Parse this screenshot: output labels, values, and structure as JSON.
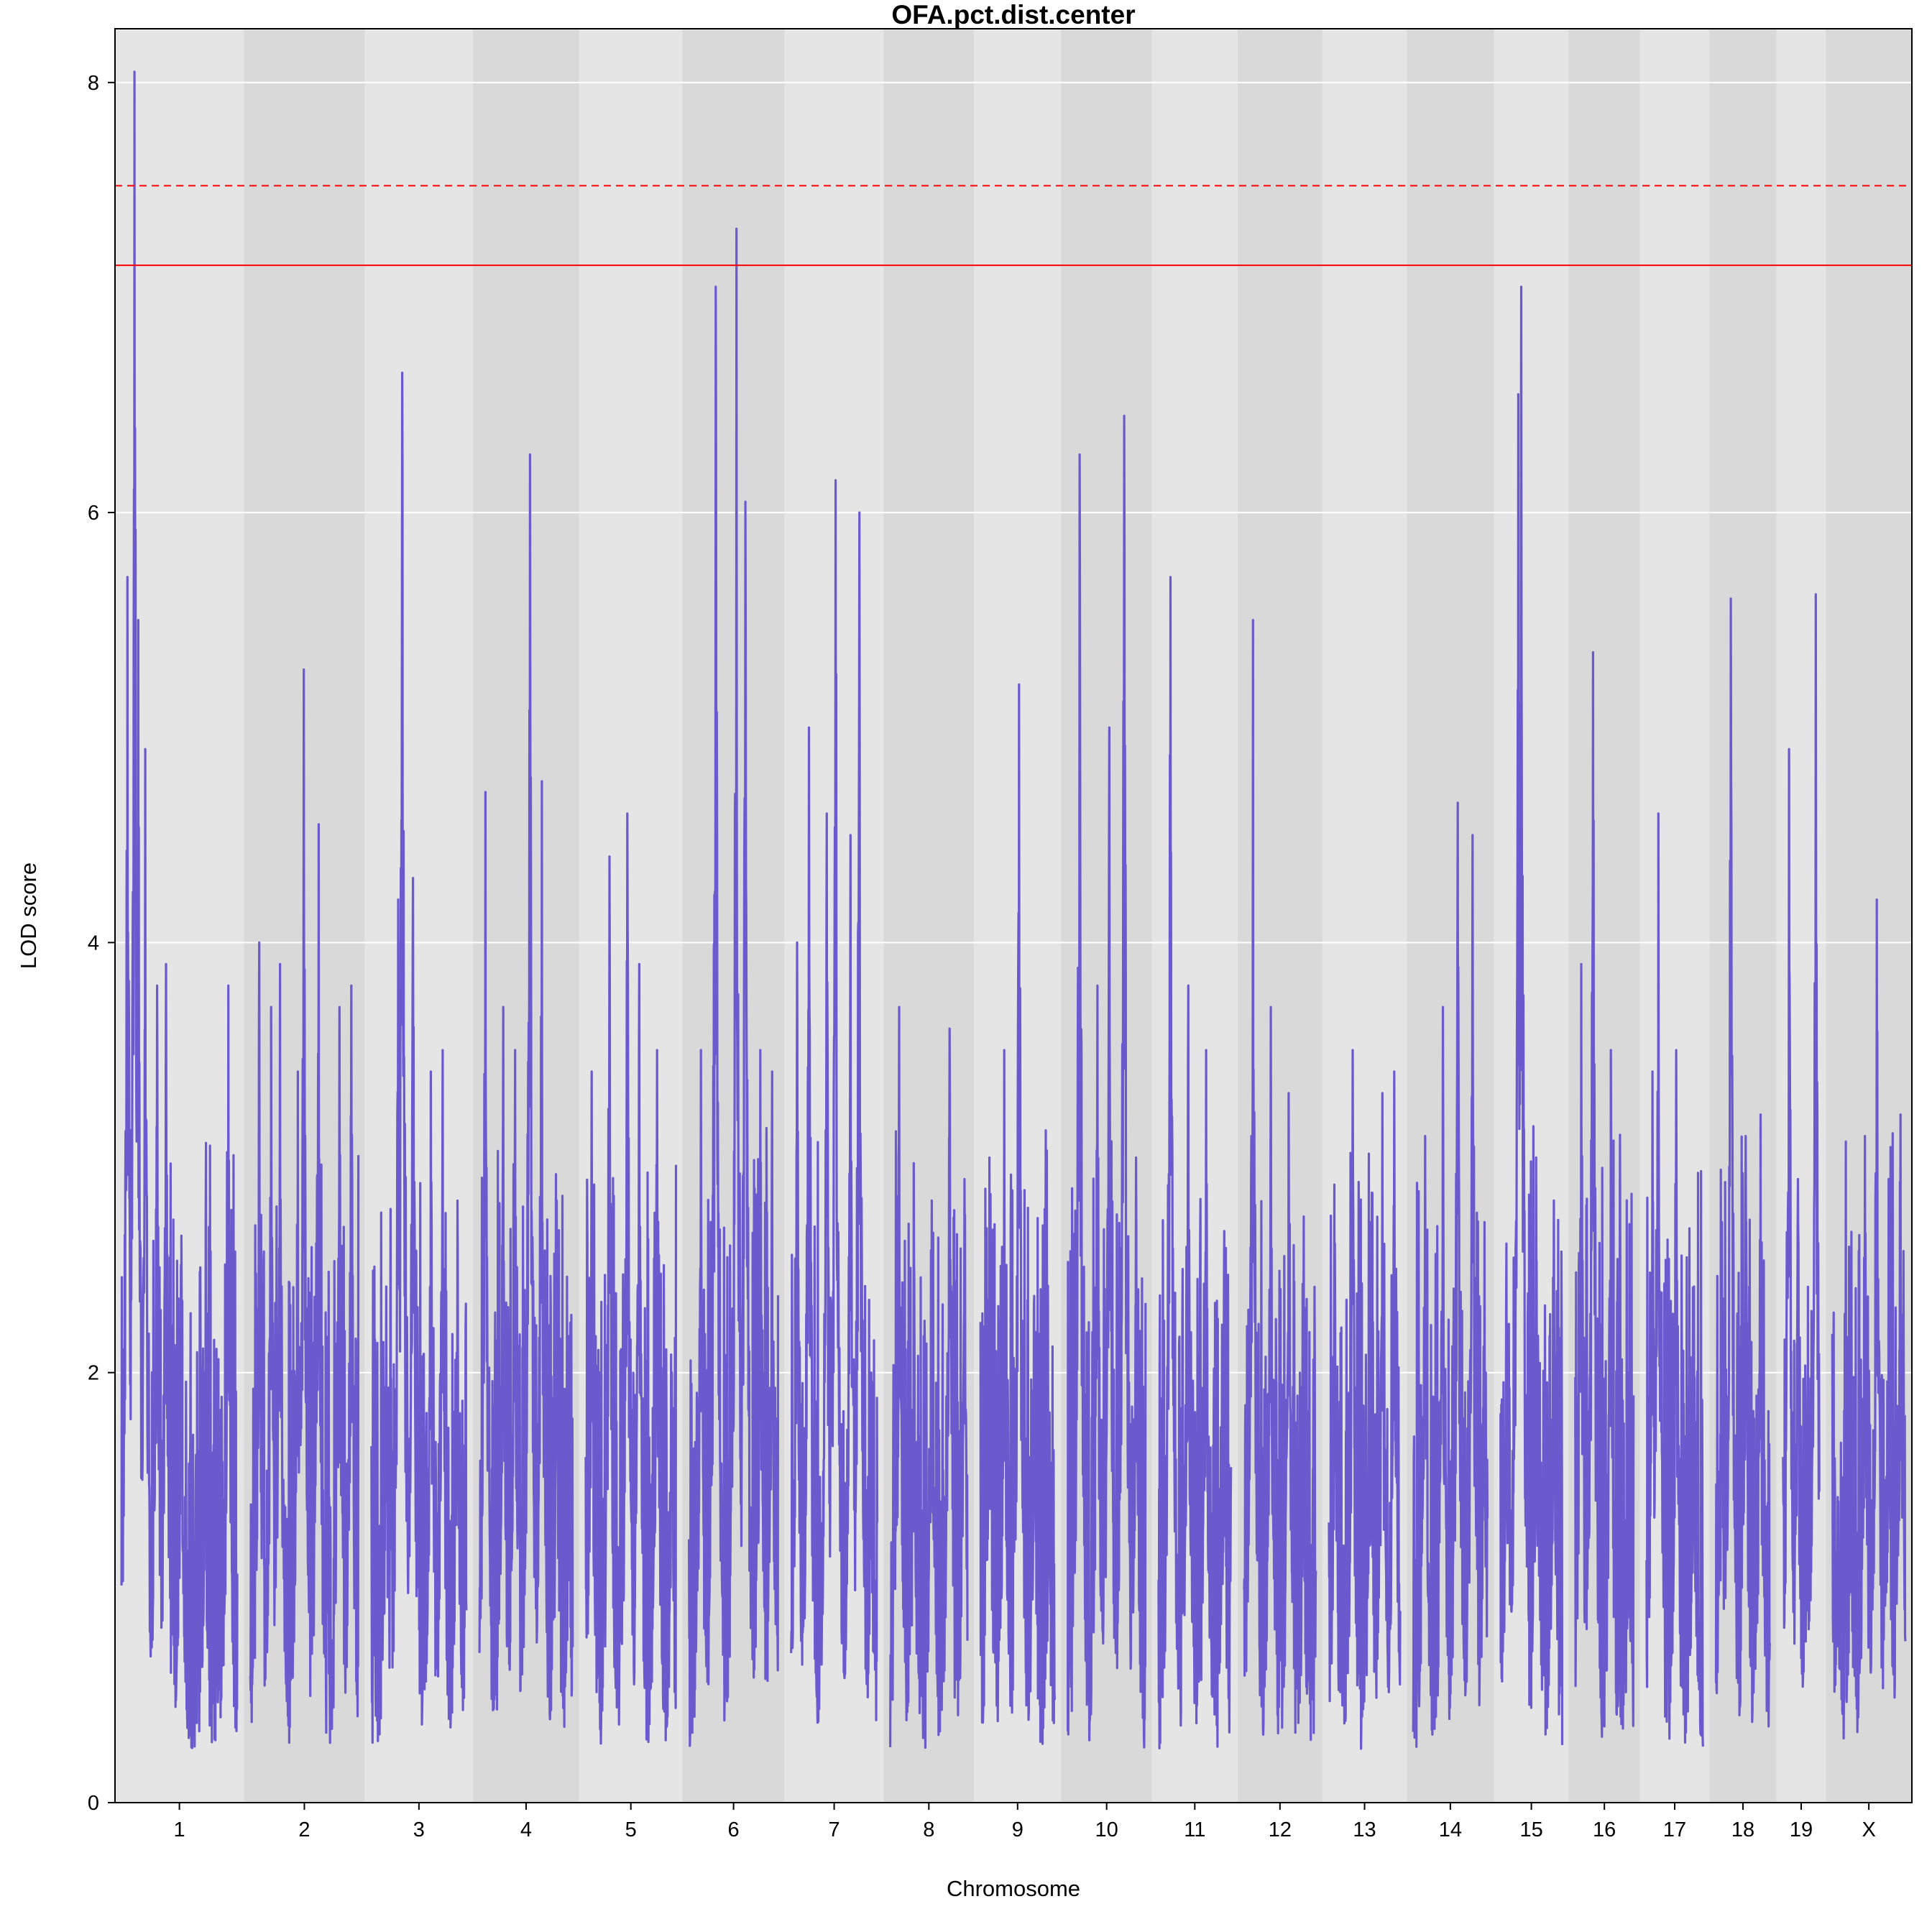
{
  "chart_data": {
    "type": "line",
    "title": "OFA.pct.dist.center",
    "xlabel": "Chromosome",
    "ylabel": "LOD score",
    "ylim": [
      0,
      8.25
    ],
    "yticks": [
      0,
      2,
      4,
      6,
      8
    ],
    "grid": true,
    "line_color": "#6a5acd",
    "band_colors": [
      "#e5e5e5",
      "#d9d9d9"
    ],
    "threshold_color": "#ff0000",
    "thresholds": [
      {
        "name": "solid",
        "value": 7.15,
        "style": "solid"
      },
      {
        "name": "dashed",
        "value": 7.52,
        "style": "dashed"
      }
    ],
    "chromosomes": [
      {
        "label": "1",
        "length": 195,
        "peaks": [
          [
            10,
            5.7
          ],
          [
            22,
            8.05
          ],
          [
            28,
            5.5
          ],
          [
            40,
            4.9
          ],
          [
            60,
            3.8
          ],
          [
            75,
            3.9
          ],
          [
            100,
            2.5
          ],
          [
            140,
            2.0
          ],
          [
            180,
            3.8
          ]
        ]
      },
      {
        "label": "2",
        "length": 182,
        "peaks": [
          [
            15,
            4.0
          ],
          [
            35,
            3.7
          ],
          [
            50,
            3.9
          ],
          [
            80,
            3.4
          ],
          [
            90,
            5.27
          ],
          [
            115,
            4.55
          ],
          [
            150,
            3.7
          ],
          [
            170,
            3.8
          ]
        ]
      },
      {
        "label": "3",
        "length": 160,
        "peaks": [
          [
            25,
            2.4
          ],
          [
            45,
            4.2
          ],
          [
            52,
            6.65
          ],
          [
            70,
            4.3
          ],
          [
            100,
            3.4
          ],
          [
            120,
            3.5
          ],
          [
            145,
            2.8
          ]
        ]
      },
      {
        "label": "4",
        "length": 157,
        "peaks": [
          [
            10,
            4.7
          ],
          [
            40,
            3.7
          ],
          [
            60,
            3.5
          ],
          [
            85,
            6.27
          ],
          [
            105,
            4.75
          ],
          [
            130,
            2.8
          ],
          [
            150,
            1.8
          ]
        ]
      },
      {
        "label": "5",
        "length": 152,
        "peaks": [
          [
            10,
            3.4
          ],
          [
            40,
            4.4
          ],
          [
            70,
            4.6
          ],
          [
            90,
            3.9
          ],
          [
            120,
            3.5
          ],
          [
            145,
            2.0
          ]
        ]
      },
      {
        "label": "6",
        "length": 150,
        "peaks": [
          [
            20,
            3.5
          ],
          [
            45,
            7.05
          ],
          [
            80,
            7.32
          ],
          [
            95,
            6.05
          ],
          [
            120,
            3.5
          ],
          [
            140,
            3.4
          ]
        ]
      },
      {
        "label": "7",
        "length": 145,
        "peaks": [
          [
            10,
            4.0
          ],
          [
            30,
            5.0
          ],
          [
            60,
            4.6
          ],
          [
            75,
            6.15
          ],
          [
            100,
            4.5
          ],
          [
            115,
            6.0
          ],
          [
            135,
            2.0
          ]
        ]
      },
      {
        "label": "8",
        "length": 130,
        "peaks": [
          [
            15,
            3.7
          ],
          [
            40,
            2.5
          ],
          [
            70,
            2.8
          ],
          [
            100,
            3.6
          ],
          [
            125,
            2.9
          ]
        ]
      },
      {
        "label": "9",
        "length": 125,
        "peaks": [
          [
            15,
            3.0
          ],
          [
            40,
            3.5
          ],
          [
            65,
            5.2
          ],
          [
            90,
            2.3
          ],
          [
            115,
            1.8
          ]
        ]
      },
      {
        "label": "10",
        "length": 131,
        "peaks": [
          [
            20,
            6.27
          ],
          [
            50,
            3.8
          ],
          [
            70,
            5.0
          ],
          [
            95,
            6.45
          ],
          [
            115,
            3.0
          ]
        ]
      },
      {
        "label": "11",
        "length": 122,
        "peaks": [
          [
            20,
            5.7
          ],
          [
            50,
            3.8
          ],
          [
            80,
            3.5
          ],
          [
            110,
            2.4
          ]
        ]
      },
      {
        "label": "12",
        "length": 121,
        "peaks": [
          [
            15,
            5.5
          ],
          [
            45,
            3.7
          ],
          [
            75,
            3.3
          ],
          [
            100,
            2.1
          ]
        ]
      },
      {
        "label": "13",
        "length": 120,
        "peaks": [
          [
            10,
            2.6
          ],
          [
            40,
            3.5
          ],
          [
            70,
            2.7
          ],
          [
            90,
            3.3
          ],
          [
            110,
            3.4
          ]
        ]
      },
      {
        "label": "14",
        "length": 125,
        "peaks": [
          [
            20,
            3.1
          ],
          [
            50,
            3.7
          ],
          [
            75,
            4.65
          ],
          [
            100,
            4.5
          ],
          [
            120,
            2.7
          ]
        ]
      },
      {
        "label": "15",
        "length": 104,
        "peaks": [
          [
            10,
            2.6
          ],
          [
            30,
            6.55
          ],
          [
            35,
            7.05
          ],
          [
            60,
            3.0
          ],
          [
            90,
            2.8
          ]
        ]
      },
      {
        "label": "16",
        "length": 98,
        "peaks": [
          [
            10,
            3.9
          ],
          [
            30,
            5.35
          ],
          [
            60,
            3.5
          ],
          [
            90,
            2.0
          ]
        ]
      },
      {
        "label": "17",
        "length": 95,
        "peaks": [
          [
            10,
            3.4
          ],
          [
            20,
            4.6
          ],
          [
            50,
            3.5
          ],
          [
            80,
            2.4
          ]
        ]
      },
      {
        "label": "18",
        "length": 91,
        "peaks": [
          [
            10,
            2.7
          ],
          [
            25,
            5.6
          ],
          [
            50,
            3.1
          ],
          [
            75,
            3.2
          ]
        ]
      },
      {
        "label": "19",
        "length": 61,
        "peaks": [
          [
            10,
            4.9
          ],
          [
            25,
            2.9
          ],
          [
            40,
            1.8
          ],
          [
            55,
            5.62
          ]
        ]
      },
      {
        "label": "X",
        "length": 123,
        "peaks": [
          [
            10,
            1.4
          ],
          [
            30,
            1.5
          ],
          [
            55,
            3.1
          ],
          [
            75,
            4.2
          ],
          [
            95,
            2.9
          ],
          [
            115,
            3.2
          ]
        ]
      }
    ]
  }
}
